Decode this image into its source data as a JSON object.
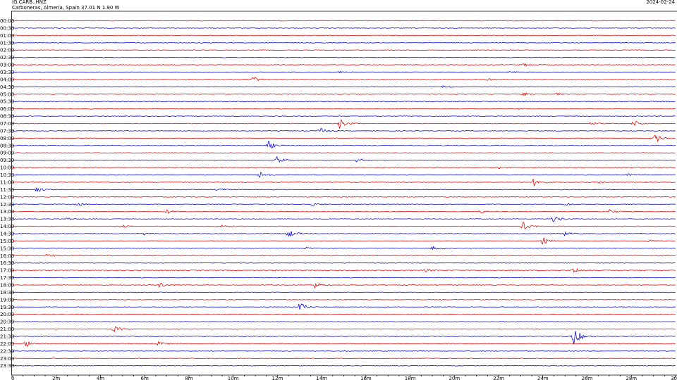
{
  "header": {
    "station": "IG.CARB..HNZ",
    "location": "Carboneras, Almeria, Spain  37.01 N 1.90 W",
    "date": "2024-02-24"
  },
  "colors": {
    "red_trace": "#e00000",
    "blue_trace": "#0000d0",
    "axis": "#000000"
  },
  "chart_data": {
    "type": "line",
    "rows": [
      "00:00",
      "00:30",
      "01:00",
      "01:30",
      "02:00",
      "02:30",
      "03:00",
      "03:30",
      "04:00",
      "04:30",
      "05:00",
      "05:30",
      "06:00",
      "06:30",
      "07:00",
      "07:30",
      "08:00",
      "08:30",
      "09:00",
      "09:30",
      "10:00",
      "10:30",
      "11:00",
      "11:30",
      "12:00",
      "12:30",
      "13:00",
      "13:30",
      "14:00",
      "14:30",
      "15:00",
      "15:30",
      "16:00",
      "16:30",
      "17:00",
      "17:30",
      "18:00",
      "18:30",
      "19:00",
      "19:30",
      "20:00",
      "20:30",
      "21:00",
      "21:30",
      "22:00",
      "22:30",
      "23:00",
      "23:30"
    ],
    "x_ticks": [
      "0",
      "2m",
      "4m",
      "6m",
      "8m",
      "10m",
      "12m",
      "14m",
      "16m",
      "18m",
      "20m",
      "22m",
      "24m",
      "26m",
      "28m",
      "30"
    ],
    "xlim": [
      0,
      30
    ],
    "row_colors": [
      "red",
      "blue"
    ],
    "events": [
      {
        "row": "03:00",
        "t": 23.1,
        "amp": 2
      },
      {
        "row": "03:30",
        "t": 12.5,
        "amp": 1
      },
      {
        "row": "03:30",
        "t": 14.8,
        "amp": 1
      },
      {
        "row": "03:30",
        "t": 22.5,
        "amp": 1.2
      },
      {
        "row": "04:00",
        "t": 10.9,
        "amp": 4
      },
      {
        "row": "04:00",
        "t": 21.5,
        "amp": 1.5
      },
      {
        "row": "04:30",
        "t": 19.5,
        "amp": 1.5
      },
      {
        "row": "05:00",
        "t": 23.1,
        "amp": 2
      },
      {
        "row": "05:00",
        "t": 24.6,
        "amp": 1.5
      },
      {
        "row": "06:00",
        "t": 22.9,
        "amp": 1
      },
      {
        "row": "07:00",
        "t": 14.8,
        "amp": 8
      },
      {
        "row": "07:00",
        "t": 26.2,
        "amp": 2
      },
      {
        "row": "07:00",
        "t": 28.1,
        "amp": 5
      },
      {
        "row": "07:30",
        "t": 13.9,
        "amp": 5
      },
      {
        "row": "08:00",
        "t": 29.1,
        "amp": 6
      },
      {
        "row": "08:30",
        "t": 11.6,
        "amp": 6
      },
      {
        "row": "09:30",
        "t": 12.0,
        "amp": 6
      },
      {
        "row": "09:30",
        "t": 15.6,
        "amp": 3
      },
      {
        "row": "10:00",
        "t": 22.0,
        "amp": 1.5
      },
      {
        "row": "10:30",
        "t": 11.2,
        "amp": 5
      },
      {
        "row": "10:30",
        "t": 27.8,
        "amp": 2
      },
      {
        "row": "11:00",
        "t": 23.6,
        "amp": 6
      },
      {
        "row": "11:00",
        "t": 26.5,
        "amp": 1.5
      },
      {
        "row": "11:30",
        "t": 1.1,
        "amp": 4
      },
      {
        "row": "11:30",
        "t": 9.3,
        "amp": 2
      },
      {
        "row": "12:30",
        "t": 3.0,
        "amp": 2
      },
      {
        "row": "12:30",
        "t": 13.6,
        "amp": 2
      },
      {
        "row": "12:30",
        "t": 25.0,
        "amp": 2
      },
      {
        "row": "13:00",
        "t": 7.0,
        "amp": 3
      },
      {
        "row": "13:00",
        "t": 27.0,
        "amp": 3
      },
      {
        "row": "13:00",
        "t": 21.2,
        "amp": 2.5
      },
      {
        "row": "13:30",
        "t": 24.5,
        "amp": 5
      },
      {
        "row": "13:30",
        "t": 2.5,
        "amp": 2
      },
      {
        "row": "14:00",
        "t": 23.1,
        "amp": 6
      },
      {
        "row": "14:00",
        "t": 5.0,
        "amp": 2
      },
      {
        "row": "14:00",
        "t": 9.5,
        "amp": 2
      },
      {
        "row": "14:30",
        "t": 12.5,
        "amp": 6
      },
      {
        "row": "14:30",
        "t": 6.0,
        "amp": 2
      },
      {
        "row": "14:30",
        "t": 25.0,
        "amp": 3
      },
      {
        "row": "15:00",
        "t": 24.0,
        "amp": 5
      },
      {
        "row": "15:00",
        "t": 28.8,
        "amp": 2
      },
      {
        "row": "15:30",
        "t": 19.0,
        "amp": 2.5
      },
      {
        "row": "15:30",
        "t": 13.3,
        "amp": 2
      },
      {
        "row": "16:00",
        "t": 1.6,
        "amp": 3
      },
      {
        "row": "17:00",
        "t": 18.7,
        "amp": 2
      },
      {
        "row": "17:00",
        "t": 25.4,
        "amp": 4
      },
      {
        "row": "18:00",
        "t": 6.7,
        "amp": 4
      },
      {
        "row": "18:00",
        "t": 13.7,
        "amp": 4
      },
      {
        "row": "19:30",
        "t": 13.0,
        "amp": 7
      },
      {
        "row": "21:00",
        "t": 4.6,
        "amp": 4
      },
      {
        "row": "21:30",
        "t": 25.4,
        "amp": 14
      },
      {
        "row": "22:00",
        "t": 0.6,
        "amp": 5
      },
      {
        "row": "22:00",
        "t": 6.6,
        "amp": 3
      }
    ]
  }
}
